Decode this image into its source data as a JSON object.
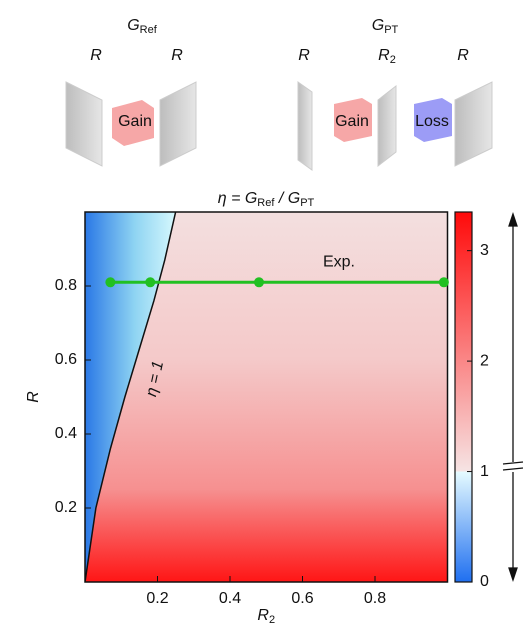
{
  "diagrams": {
    "ref": {
      "label": [
        "G",
        "Ref"
      ],
      "mirrors": [
        "R",
        "R"
      ],
      "gain": "Gain"
    },
    "pt": {
      "label": [
        "G",
        "PT"
      ],
      "mirrors": [
        "R",
        "R",
        "R"
      ],
      "mirror_sub": "2",
      "gain": "Gain",
      "loss": "Loss"
    }
  },
  "chart_data": {
    "type": "heatmap",
    "title": [
      "η = G",
      "Ref",
      " / G",
      "PT"
    ],
    "xlabel": [
      "R",
      "2"
    ],
    "ylabel": "R",
    "xlim": [
      0,
      1
    ],
    "ylim": [
      0,
      1
    ],
    "xticks": [
      0.2,
      0.4,
      0.6,
      0.8
    ],
    "yticks": [
      0.2,
      0.4,
      0.6,
      0.8
    ],
    "clim": [
      0,
      3.35
    ],
    "cticks": [
      0,
      1,
      2,
      3
    ],
    "colormap": [
      {
        "value": 0,
        "color": "#1f6ff0"
      },
      {
        "value": 1,
        "color": "#e6fbff"
      },
      {
        "value": 1,
        "color": "#f6e4e4"
      },
      {
        "value": 3.35,
        "color": "#ff0a0a"
      }
    ],
    "contour": {
      "label": "η = 1",
      "x": [
        0,
        0.03,
        0.07,
        0.11,
        0.15,
        0.19,
        0.22,
        0.25
      ],
      "y": [
        0,
        0.2,
        0.36,
        0.5,
        0.63,
        0.76,
        0.87,
        1
      ]
    },
    "series": [
      {
        "name": "Exp.",
        "color": "#22c022",
        "x": [
          0.07,
          0.18,
          0.48,
          0.99
        ],
        "values": [
          0.81,
          0.81,
          0.81,
          0.81
        ]
      }
    ]
  }
}
